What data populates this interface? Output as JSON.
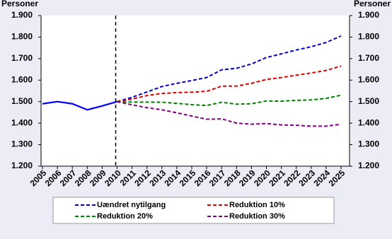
{
  "chart_data": {
    "type": "line",
    "y_label": "Personer",
    "y2_label": "Personer",
    "categories": [
      "2005",
      "2006",
      "2007",
      "2008",
      "2009",
      "2010",
      "2011",
      "2012",
      "2013",
      "2014",
      "2015",
      "2016",
      "2017",
      "2018",
      "2019",
      "2020",
      "2021",
      "2022",
      "2023",
      "2024",
      "2025"
    ],
    "series": [
      {
        "color": "#0000ff",
        "dash": false,
        "values": [
          1490,
          1500,
          1490,
          1462,
          1480,
          1500,
          null,
          null,
          null,
          null,
          null,
          null,
          null,
          null,
          null,
          null,
          null,
          null,
          null,
          null,
          null
        ]
      },
      {
        "name": "Uændret nytilgang",
        "color": "#0000cc",
        "dash": true,
        "values": [
          null,
          null,
          null,
          null,
          null,
          1500,
          1520,
          1545,
          1570,
          1585,
          1598,
          1612,
          1648,
          1655,
          1675,
          1705,
          1722,
          1740,
          1755,
          1775,
          1805
        ]
      },
      {
        "name": "Reduktion 10%",
        "color": "#e00000",
        "dash": true,
        "values": [
          null,
          null,
          null,
          null,
          null,
          1500,
          1512,
          1528,
          1538,
          1542,
          1544,
          1548,
          1572,
          1572,
          1585,
          1603,
          1612,
          1623,
          1633,
          1645,
          1665
        ]
      },
      {
        "name": "Reduktion 20%",
        "color": "#008000",
        "dash": true,
        "values": [
          null,
          null,
          null,
          null,
          null,
          1500,
          1498,
          1498,
          1497,
          1492,
          1486,
          1482,
          1497,
          1488,
          1490,
          1503,
          1502,
          1506,
          1508,
          1515,
          1530
        ]
      },
      {
        "name": "Reduktion  30%",
        "color": "#800080",
        "dash": true,
        "values": [
          null,
          null,
          null,
          null,
          null,
          1500,
          1485,
          1472,
          1462,
          1448,
          1433,
          1418,
          1420,
          1400,
          1395,
          1398,
          1392,
          1390,
          1386,
          1386,
          1395
        ]
      }
    ],
    "ylim": [
      1200,
      1900
    ],
    "yticks": [
      {
        "value": 1200,
        "label": "1.200"
      },
      {
        "value": 1300,
        "label": "1.300"
      },
      {
        "value": 1400,
        "label": "1.400"
      },
      {
        "value": 1500,
        "label": "1.500"
      },
      {
        "value": 1600,
        "label": "1.600"
      },
      {
        "value": 1700,
        "label": "1.700"
      },
      {
        "value": 1800,
        "label": "1.800"
      },
      {
        "value": 1900,
        "label": "1.900"
      }
    ],
    "y2lim": [
      1200,
      1900
    ],
    "y2ticks": [
      {
        "value": 1200,
        "label": "1.200"
      },
      {
        "value": 1300,
        "label": "1.300"
      },
      {
        "value": 1400,
        "label": "1.400"
      },
      {
        "value": 1500,
        "label": "1.500"
      },
      {
        "value": 1600,
        "label": "1.600"
      },
      {
        "value": 1700,
        "label": "1.700"
      },
      {
        "value": 1800,
        "label": "1.800"
      },
      {
        "value": 1900,
        "label": "1.900"
      }
    ]
  }
}
